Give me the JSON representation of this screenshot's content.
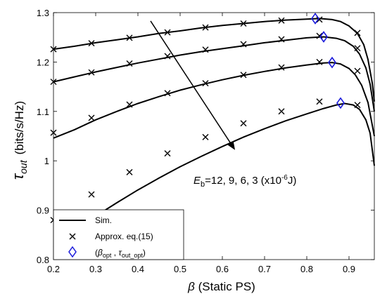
{
  "chart_data": {
    "type": "line",
    "xlabel": "β (Static PS)",
    "ylabel_symbol": "τ",
    "ylabel_sub": "out",
    "ylabel_unit": "(bits/s/Hz)",
    "xlim": [
      0.2,
      0.96
    ],
    "ylim": [
      0.8,
      1.3
    ],
    "xticks": [
      0.2,
      0.3,
      0.4,
      0.5,
      0.6,
      0.7,
      0.8,
      0.9
    ],
    "xtick_labels": [
      "0.2",
      "0.3",
      "0.4",
      "0.5",
      "0.6",
      "0.7",
      "0.8",
      "0.9"
    ],
    "yticks": [
      0.8,
      0.9,
      1.0,
      1.1,
      1.2,
      1.3
    ],
    "ytick_labels": [
      "0.8",
      "0.9",
      "1",
      "1.1",
      "1.2",
      "1.3"
    ],
    "grid": false,
    "legend_position": "bottom-left",
    "legend": [
      {
        "marker": "line",
        "label": "Sim."
      },
      {
        "marker": "x",
        "label": "Approx. eq.(15)"
      },
      {
        "marker": "diamond",
        "label": "(β_opt , τ_out_opt)"
      }
    ],
    "annotation": {
      "text_main": "E",
      "text_sub": "b",
      "text_rest": "=12, 9, 6, 3 (x10",
      "text_sup": "-6",
      "text_end": "J)",
      "arrow_from": [
        0.43,
        1.283
      ],
      "arrow_to": [
        0.63,
        1.022
      ]
    },
    "series": [
      {
        "E_b": 12,
        "sim": [
          [
            0.2,
            1.226
          ],
          [
            0.25,
            1.232
          ],
          [
            0.3,
            1.239
          ],
          [
            0.35,
            1.245
          ],
          [
            0.4,
            1.251
          ],
          [
            0.45,
            1.258
          ],
          [
            0.5,
            1.263
          ],
          [
            0.55,
            1.269
          ],
          [
            0.6,
            1.274
          ],
          [
            0.65,
            1.278
          ],
          [
            0.7,
            1.282
          ],
          [
            0.75,
            1.285
          ],
          [
            0.8,
            1.287
          ],
          [
            0.83,
            1.288
          ],
          [
            0.86,
            1.286
          ],
          [
            0.88,
            1.282
          ],
          [
            0.9,
            1.273
          ],
          [
            0.92,
            1.258
          ],
          [
            0.935,
            1.235
          ],
          [
            0.945,
            1.205
          ],
          [
            0.955,
            1.158
          ],
          [
            0.96,
            1.12
          ]
        ],
        "approx": [
          [
            0.2,
            1.226
          ],
          [
            0.29,
            1.238
          ],
          [
            0.38,
            1.249
          ],
          [
            0.47,
            1.26
          ],
          [
            0.56,
            1.27
          ],
          [
            0.65,
            1.278
          ],
          [
            0.74,
            1.284
          ],
          [
            0.83,
            1.286
          ],
          [
            0.92,
            1.259
          ]
        ],
        "opt": [
          0.82,
          1.288
        ]
      },
      {
        "E_b": 9,
        "sim": [
          [
            0.2,
            1.16
          ],
          [
            0.25,
            1.17
          ],
          [
            0.3,
            1.18
          ],
          [
            0.35,
            1.189
          ],
          [
            0.4,
            1.198
          ],
          [
            0.45,
            1.206
          ],
          [
            0.5,
            1.214
          ],
          [
            0.55,
            1.221
          ],
          [
            0.6,
            1.227
          ],
          [
            0.65,
            1.233
          ],
          [
            0.7,
            1.239
          ],
          [
            0.75,
            1.244
          ],
          [
            0.8,
            1.249
          ],
          [
            0.84,
            1.251
          ],
          [
            0.87,
            1.248
          ],
          [
            0.89,
            1.243
          ],
          [
            0.91,
            1.232
          ],
          [
            0.925,
            1.216
          ],
          [
            0.94,
            1.188
          ],
          [
            0.95,
            1.155
          ],
          [
            0.96,
            1.1
          ]
        ],
        "approx": [
          [
            0.2,
            1.16
          ],
          [
            0.29,
            1.179
          ],
          [
            0.38,
            1.197
          ],
          [
            0.47,
            1.212
          ],
          [
            0.56,
            1.225
          ],
          [
            0.65,
            1.236
          ],
          [
            0.74,
            1.246
          ],
          [
            0.83,
            1.253
          ],
          [
            0.92,
            1.228
          ]
        ],
        "opt": [
          0.84,
          1.251
        ]
      },
      {
        "E_b": 6,
        "sim": [
          [
            0.2,
            1.046
          ],
          [
            0.25,
            1.063
          ],
          [
            0.3,
            1.083
          ],
          [
            0.35,
            1.1
          ],
          [
            0.4,
            1.116
          ],
          [
            0.45,
            1.13
          ],
          [
            0.5,
            1.143
          ],
          [
            0.55,
            1.154
          ],
          [
            0.6,
            1.164
          ],
          [
            0.65,
            1.173
          ],
          [
            0.7,
            1.181
          ],
          [
            0.75,
            1.188
          ],
          [
            0.8,
            1.194
          ],
          [
            0.84,
            1.198
          ],
          [
            0.86,
            1.199
          ],
          [
            0.88,
            1.196
          ],
          [
            0.9,
            1.187
          ],
          [
            0.915,
            1.174
          ],
          [
            0.93,
            1.153
          ],
          [
            0.945,
            1.118
          ],
          [
            0.96,
            1.05
          ]
        ],
        "approx": [
          [
            0.2,
            1.057
          ],
          [
            0.29,
            1.087
          ],
          [
            0.38,
            1.114
          ],
          [
            0.47,
            1.137
          ],
          [
            0.56,
            1.157
          ],
          [
            0.65,
            1.174
          ],
          [
            0.74,
            1.189
          ],
          [
            0.83,
            1.2
          ],
          [
            0.92,
            1.182
          ]
        ],
        "opt": [
          0.86,
          1.199
        ]
      },
      {
        "E_b": 3,
        "sim": [
          [
            0.2,
            0.825
          ],
          [
            0.25,
            0.857
          ],
          [
            0.3,
            0.888
          ],
          [
            0.35,
            0.915
          ],
          [
            0.4,
            0.941
          ],
          [
            0.45,
            0.965
          ],
          [
            0.5,
            0.988
          ],
          [
            0.55,
            1.009
          ],
          [
            0.6,
            1.029
          ],
          [
            0.65,
            1.048
          ],
          [
            0.7,
            1.065
          ],
          [
            0.75,
            1.081
          ],
          [
            0.8,
            1.095
          ],
          [
            0.84,
            1.106
          ],
          [
            0.87,
            1.113
          ],
          [
            0.89,
            1.116
          ],
          [
            0.91,
            1.113
          ],
          [
            0.925,
            1.104
          ],
          [
            0.94,
            1.083
          ],
          [
            0.95,
            1.056
          ],
          [
            0.96,
            0.99
          ]
        ],
        "approx": [
          [
            0.2,
            0.88
          ],
          [
            0.29,
            0.932
          ],
          [
            0.38,
            0.977
          ],
          [
            0.47,
            1.015
          ],
          [
            0.56,
            1.048
          ],
          [
            0.65,
            1.076
          ],
          [
            0.74,
            1.1
          ],
          [
            0.83,
            1.12
          ],
          [
            0.92,
            1.113
          ]
        ],
        "opt": [
          0.88,
          1.117
        ]
      }
    ],
    "colors": {
      "line": "#000000",
      "approx": "#000000",
      "opt": "#1a1adb"
    }
  }
}
